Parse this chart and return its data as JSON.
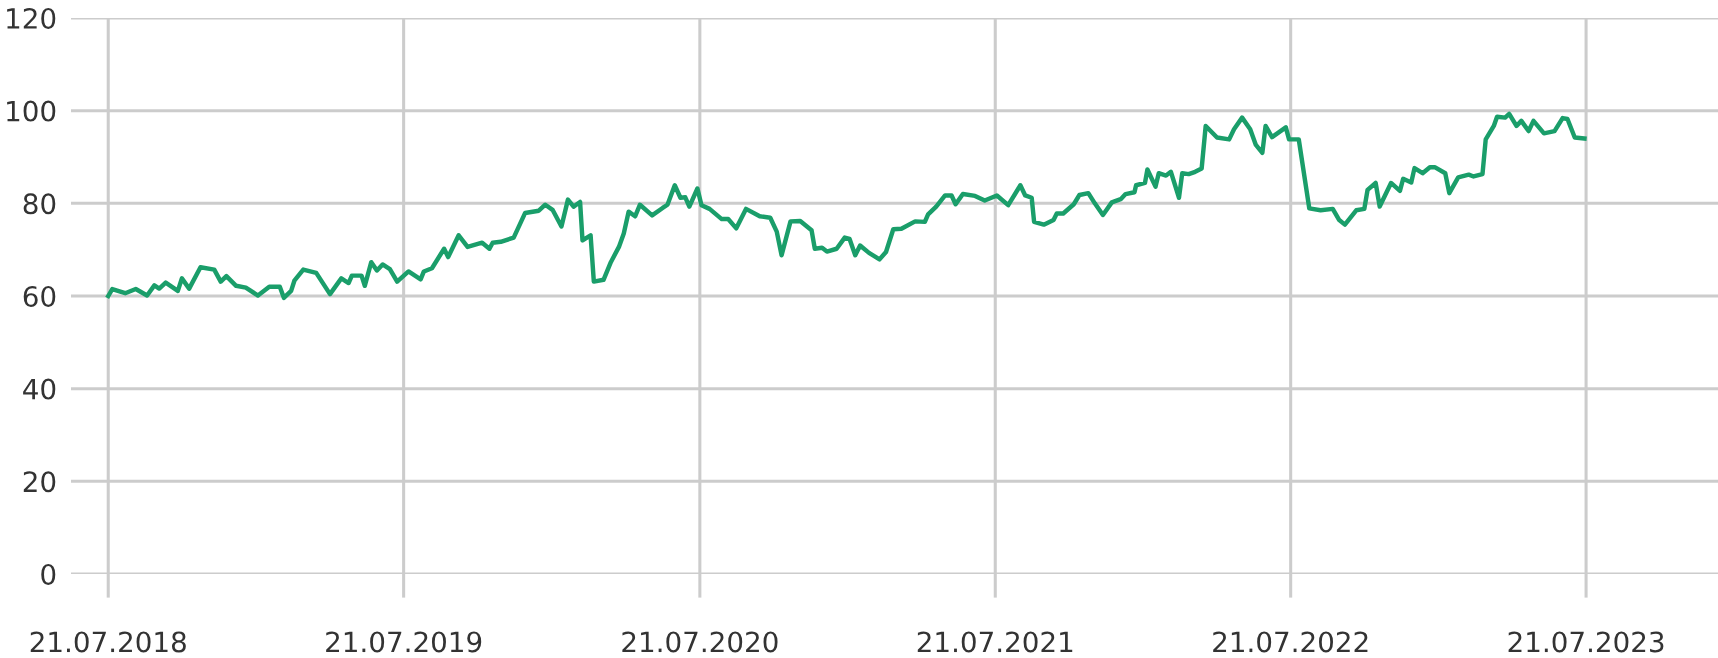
{
  "chart_data": {
    "type": "line",
    "x": [
      "2018-07-21",
      "2018-07-26",
      "2018-08-11",
      "2018-08-24",
      "2018-09-07",
      "2018-09-16",
      "2018-09-22",
      "2018-09-30",
      "2018-10-15",
      "2018-10-20",
      "2018-10-29",
      "2018-11-12",
      "2018-11-29",
      "2018-12-07",
      "2018-12-14",
      "2018-12-26",
      "2019-01-07",
      "2019-01-22",
      "2019-02-05",
      "2019-02-18",
      "2019-02-23",
      "2019-03-04",
      "2019-03-08",
      "2019-03-19",
      "2019-04-04",
      "2019-04-21",
      "2019-05-05",
      "2019-05-14",
      "2019-05-18",
      "2019-05-30",
      "2019-06-03",
      "2019-06-11",
      "2019-06-18",
      "2019-06-25",
      "2019-07-04",
      "2019-07-13",
      "2019-07-27",
      "2019-08-11",
      "2019-08-15",
      "2019-08-25",
      "2019-09-09",
      "2019-09-14",
      "2019-09-27",
      "2019-10-08",
      "2019-10-26",
      "2019-11-04",
      "2019-11-08",
      "2019-11-18",
      "2019-12-04",
      "2019-12-18",
      "2020-01-04",
      "2020-01-12",
      "2020-01-21",
      "2020-02-01",
      "2020-02-09",
      "2020-02-16",
      "2020-02-24",
      "2020-02-27",
      "2020-03-08",
      "2020-03-12",
      "2020-03-24",
      "2020-04-02",
      "2020-04-12",
      "2020-04-18",
      "2020-04-24",
      "2020-05-02",
      "2020-05-08",
      "2020-05-23",
      "2020-06-05",
      "2020-06-11",
      "2020-06-20",
      "2020-06-27",
      "2020-07-03",
      "2020-07-08",
      "2020-07-18",
      "2020-07-23",
      "2020-08-02",
      "2020-08-17",
      "2020-08-25",
      "2020-09-04",
      "2020-09-16",
      "2020-10-03",
      "2020-10-16",
      "2020-10-24",
      "2020-10-30",
      "2020-11-10",
      "2020-11-22",
      "2020-12-06",
      "2020-12-10",
      "2020-12-19",
      "2020-12-25",
      "2021-01-06",
      "2021-01-16",
      "2021-01-22",
      "2021-01-29",
      "2021-02-04",
      "2021-02-15",
      "2021-02-28",
      "2021-03-08",
      "2021-03-17",
      "2021-03-27",
      "2021-04-13",
      "2021-04-25",
      "2021-04-29",
      "2021-05-09",
      "2021-05-20",
      "2021-05-28",
      "2021-06-02",
      "2021-06-11",
      "2021-06-26",
      "2021-07-08",
      "2021-07-23",
      "2021-08-06",
      "2021-08-21",
      "2021-08-27",
      "2021-09-04",
      "2021-09-07",
      "2021-09-19",
      "2021-10-01",
      "2021-10-05",
      "2021-10-13",
      "2021-10-26",
      "2021-11-02",
      "2021-11-13",
      "2021-11-21",
      "2021-12-01",
      "2021-12-12",
      "2021-12-23",
      "2021-12-29",
      "2022-01-09",
      "2022-01-11",
      "2022-01-22",
      "2022-01-25",
      "2022-02-04",
      "2022-02-08",
      "2022-02-17",
      "2022-02-23",
      "2022-03-05",
      "2022-03-09",
      "2022-03-17",
      "2022-03-25",
      "2022-04-02",
      "2022-04-07",
      "2022-04-21",
      "2022-05-06",
      "2022-05-12",
      "2022-05-22",
      "2022-06-01",
      "2022-06-08",
      "2022-06-16",
      "2022-06-20",
      "2022-06-28",
      "2022-07-15",
      "2022-07-19",
      "2022-07-31",
      "2022-08-13",
      "2022-08-27",
      "2022-09-11",
      "2022-09-19",
      "2022-09-26",
      "2022-10-10",
      "2022-10-20",
      "2022-10-24",
      "2022-11-03",
      "2022-11-08",
      "2022-11-22",
      "2022-12-03",
      "2022-12-07",
      "2022-12-17",
      "2022-12-21",
      "2022-12-31",
      "2023-01-09",
      "2023-01-15",
      "2023-01-28",
      "2023-02-02",
      "2023-02-13",
      "2023-02-26",
      "2023-03-04",
      "2023-03-15",
      "2023-03-19",
      "2023-03-29",
      "2023-04-02",
      "2023-04-12",
      "2023-04-17",
      "2023-04-26",
      "2023-05-02",
      "2023-05-11",
      "2023-05-17",
      "2023-05-30",
      "2023-06-12",
      "2023-06-22",
      "2023-06-28",
      "2023-07-07",
      "2023-07-19"
    ],
    "series": [
      {
        "color": "#1a9e6a",
        "values": [
          60.0,
          61.5,
          60.6,
          61.5,
          60.1,
          62.3,
          61.6,
          62.9,
          61.1,
          63.8,
          61.6,
          66.2,
          65.7,
          63.1,
          64.3,
          62.2,
          61.8,
          60.1,
          62.0,
          62.0,
          59.6,
          61.1,
          63.3,
          65.7,
          65.0,
          60.4,
          63.8,
          62.8,
          64.4,
          64.4,
          62.2,
          67.3,
          65.5,
          66.8,
          65.8,
          63.1,
          65.3,
          63.6,
          65.3,
          66.0,
          70.2,
          68.4,
          73.1,
          70.6,
          71.5,
          70.2,
          71.5,
          71.7,
          72.6,
          77.9,
          78.4,
          79.7,
          78.6,
          75.0,
          80.8,
          79.3,
          80.3,
          72.0,
          73.1,
          63.1,
          63.5,
          67.3,
          70.6,
          73.5,
          78.2,
          77.2,
          79.7,
          77.4,
          79.0,
          79.7,
          83.9,
          81.2,
          81.3,
          79.3,
          83.2,
          79.6,
          78.8,
          76.6,
          76.6,
          74.6,
          78.8,
          77.2,
          76.9,
          73.9,
          68.8,
          76.1,
          76.2,
          74.2,
          70.2,
          70.4,
          69.6,
          70.2,
          72.6,
          72.3,
          68.8,
          70.9,
          69.3,
          67.9,
          69.5,
          74.4,
          74.5,
          76.1,
          76.0,
          77.6,
          79.3,
          81.7,
          81.7,
          79.8,
          82.0,
          81.6,
          80.6,
          81.7,
          79.6,
          83.9,
          81.7,
          81.2,
          76.0,
          75.4,
          76.4,
          77.8,
          77.8,
          79.8,
          81.8,
          82.2,
          80.0,
          77.5,
          80.2,
          80.9,
          82.0,
          82.4,
          83.9,
          84.4,
          87.3,
          83.6,
          86.5,
          86.0,
          86.8,
          81.2,
          86.5,
          86.3,
          86.8,
          87.5,
          96.7,
          94.2,
          93.8,
          96.0,
          98.5,
          96.0,
          92.6,
          90.9,
          96.7,
          94.3,
          96.4,
          93.8,
          93.8,
          78.9,
          78.5,
          78.8,
          76.4,
          75.4,
          78.5,
          78.8,
          82.9,
          84.4,
          79.3,
          84.4,
          82.7,
          85.3,
          84.5,
          87.6,
          86.5,
          87.8,
          87.8,
          86.5,
          82.2,
          85.6,
          86.2,
          85.8,
          86.3,
          93.8,
          96.7,
          98.7,
          98.5,
          99.3,
          96.7,
          97.8,
          95.6,
          97.8,
          95.1,
          95.6,
          98.4,
          98.2,
          94.2,
          94.0
        ]
      }
    ],
    "xlim": [
      "2018-06-05",
      "2023-12-31"
    ],
    "xticks": [
      {
        "value": "2018-07-21",
        "label": "21.07.2018"
      },
      {
        "value": "2019-07-21",
        "label": "21.07.2019"
      },
      {
        "value": "2020-07-21",
        "label": "21.07.2020"
      },
      {
        "value": "2021-07-21",
        "label": "21.07.2021"
      },
      {
        "value": "2022-07-21",
        "label": "21.07.2022"
      },
      {
        "value": "2023-07-21",
        "label": "21.07.2023"
      }
    ],
    "ylim": [
      0,
      120
    ],
    "yticks": [
      0,
      20,
      40,
      60,
      80,
      100,
      120
    ],
    "grid": true,
    "marker": "none",
    "line_style": "solid",
    "legend": false
  }
}
